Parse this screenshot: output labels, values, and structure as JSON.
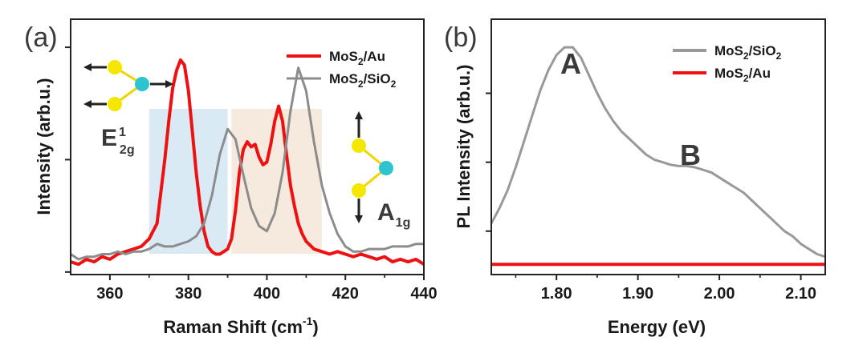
{
  "chart_data": [
    {
      "panel_label": "(a)",
      "type": "line",
      "xlabel": "Raman Shift (cm",
      "xlabel_sup": "-1",
      "xlabel_close": ")",
      "ylabel": "Intensity (arb.u.)",
      "xlim": [
        350,
        440
      ],
      "ylim": [
        0,
        100
      ],
      "xticks": [
        "360",
        "380",
        "400",
        "420",
        "440"
      ],
      "shaded_bands": [
        {
          "x0": 370,
          "x1": 390,
          "color": "#daeaf5"
        },
        {
          "x0": 391,
          "x1": 414,
          "color": "#f6e9de"
        }
      ],
      "series": [
        {
          "name": "MoS2/Au",
          "color": "#ee1111",
          "x": [
            350,
            352,
            354,
            356,
            358,
            360,
            362,
            364,
            366,
            368,
            370,
            372,
            374,
            375,
            376,
            377,
            378,
            379,
            380,
            381,
            382,
            383,
            384,
            385,
            386,
            387,
            388,
            389,
            390,
            391,
            392,
            393,
            394,
            395,
            396,
            397,
            398,
            399,
            400,
            401,
            402,
            403,
            404,
            405,
            406,
            407,
            408,
            409,
            410,
            412,
            414,
            416,
            418,
            420,
            422,
            424,
            426,
            428,
            430,
            432,
            434,
            436,
            438,
            440
          ],
          "y": [
            5,
            4,
            6,
            5,
            7,
            6,
            8,
            9,
            10,
            11,
            14,
            20,
            45,
            60,
            73,
            80,
            84,
            82,
            72,
            56,
            40,
            27,
            17,
            11,
            9,
            8,
            8,
            9,
            10,
            14,
            25,
            40,
            49,
            52,
            50,
            51,
            46,
            43,
            44,
            51,
            60,
            66,
            60,
            47,
            35,
            27,
            20,
            16,
            13,
            10,
            9,
            8,
            9,
            8,
            7,
            8,
            7,
            6,
            7,
            5,
            6,
            5,
            6,
            4
          ]
        },
        {
          "name": "MoS2/SiO2",
          "color": "#8c8c8c",
          "x": [
            350,
            352,
            354,
            356,
            358,
            360,
            362,
            364,
            366,
            368,
            370,
            372,
            374,
            376,
            378,
            380,
            382,
            384,
            386,
            388,
            390,
            392,
            394,
            396,
            398,
            400,
            402,
            404,
            406,
            408,
            410,
            412,
            414,
            416,
            418,
            420,
            422,
            424,
            426,
            428,
            430,
            432,
            434,
            436,
            438,
            440
          ],
          "y": [
            8,
            6,
            7,
            7,
            8,
            8,
            9,
            8,
            9,
            9,
            10,
            12,
            11,
            11,
            12,
            13,
            15,
            20,
            31,
            47,
            57,
            53,
            39,
            26,
            19,
            17,
            24,
            40,
            64,
            81,
            72,
            52,
            35,
            24,
            16,
            11,
            9,
            9,
            10,
            10,
            10,
            11,
            11,
            11,
            12,
            12
          ]
        }
      ],
      "legend": [
        {
          "label": "MoS",
          "sub": "2",
          "rest": "/Au",
          "color": "#ee1111"
        },
        {
          "label": "MoS",
          "sub": "2",
          "rest": "/SiO",
          "sub2": "2",
          "color": "#8c8c8c"
        }
      ],
      "annotations": {
        "mode1_main": "E",
        "mode1_sup": "1",
        "mode1_sub": "2g",
        "mode2_main": "A",
        "mode2_sub": "1g"
      }
    },
    {
      "panel_label": "(b)",
      "type": "line",
      "xlabel": "Energy (eV)",
      "ylabel": "PL Intensity (arb.u.)",
      "xlim": [
        1.72,
        2.13
      ],
      "ylim": [
        0,
        100
      ],
      "xticks": [
        "1.80",
        "1.90",
        "2.00",
        "2.10"
      ],
      "series": [
        {
          "name": "MoS2/SiO2",
          "color": "#999999",
          "x": [
            1.72,
            1.73,
            1.74,
            1.75,
            1.76,
            1.77,
            1.78,
            1.79,
            1.8,
            1.81,
            1.82,
            1.83,
            1.84,
            1.85,
            1.86,
            1.87,
            1.88,
            1.89,
            1.9,
            1.91,
            1.92,
            1.93,
            1.94,
            1.95,
            1.96,
            1.97,
            1.98,
            1.99,
            2.0,
            2.01,
            2.02,
            2.03,
            2.04,
            2.05,
            2.06,
            2.07,
            2.08,
            2.09,
            2.1,
            2.11,
            2.12,
            2.13
          ],
          "y": [
            20,
            26,
            33,
            42,
            52,
            62,
            72,
            80,
            86,
            89,
            89,
            85,
            78,
            71,
            65,
            60,
            56,
            53,
            50,
            47,
            45,
            44,
            43,
            42.5,
            42.5,
            42,
            41,
            40,
            38,
            36,
            34,
            32,
            29,
            26,
            23,
            20,
            17,
            15,
            12,
            10,
            8,
            7
          ]
        },
        {
          "name": "MoS2/Au",
          "color": "#ee1111",
          "x": [
            1.72,
            2.13
          ],
          "y": [
            4,
            4
          ]
        }
      ],
      "legend": [
        {
          "label": "MoS",
          "sub": "2",
          "rest": "/SiO",
          "sub2": "2",
          "color": "#999999"
        },
        {
          "label": "MoS",
          "sub": "2",
          "rest": "/Au",
          "color": "#ee1111"
        }
      ],
      "annotations": {
        "peak_a": "A",
        "peak_b": "B"
      }
    }
  ]
}
